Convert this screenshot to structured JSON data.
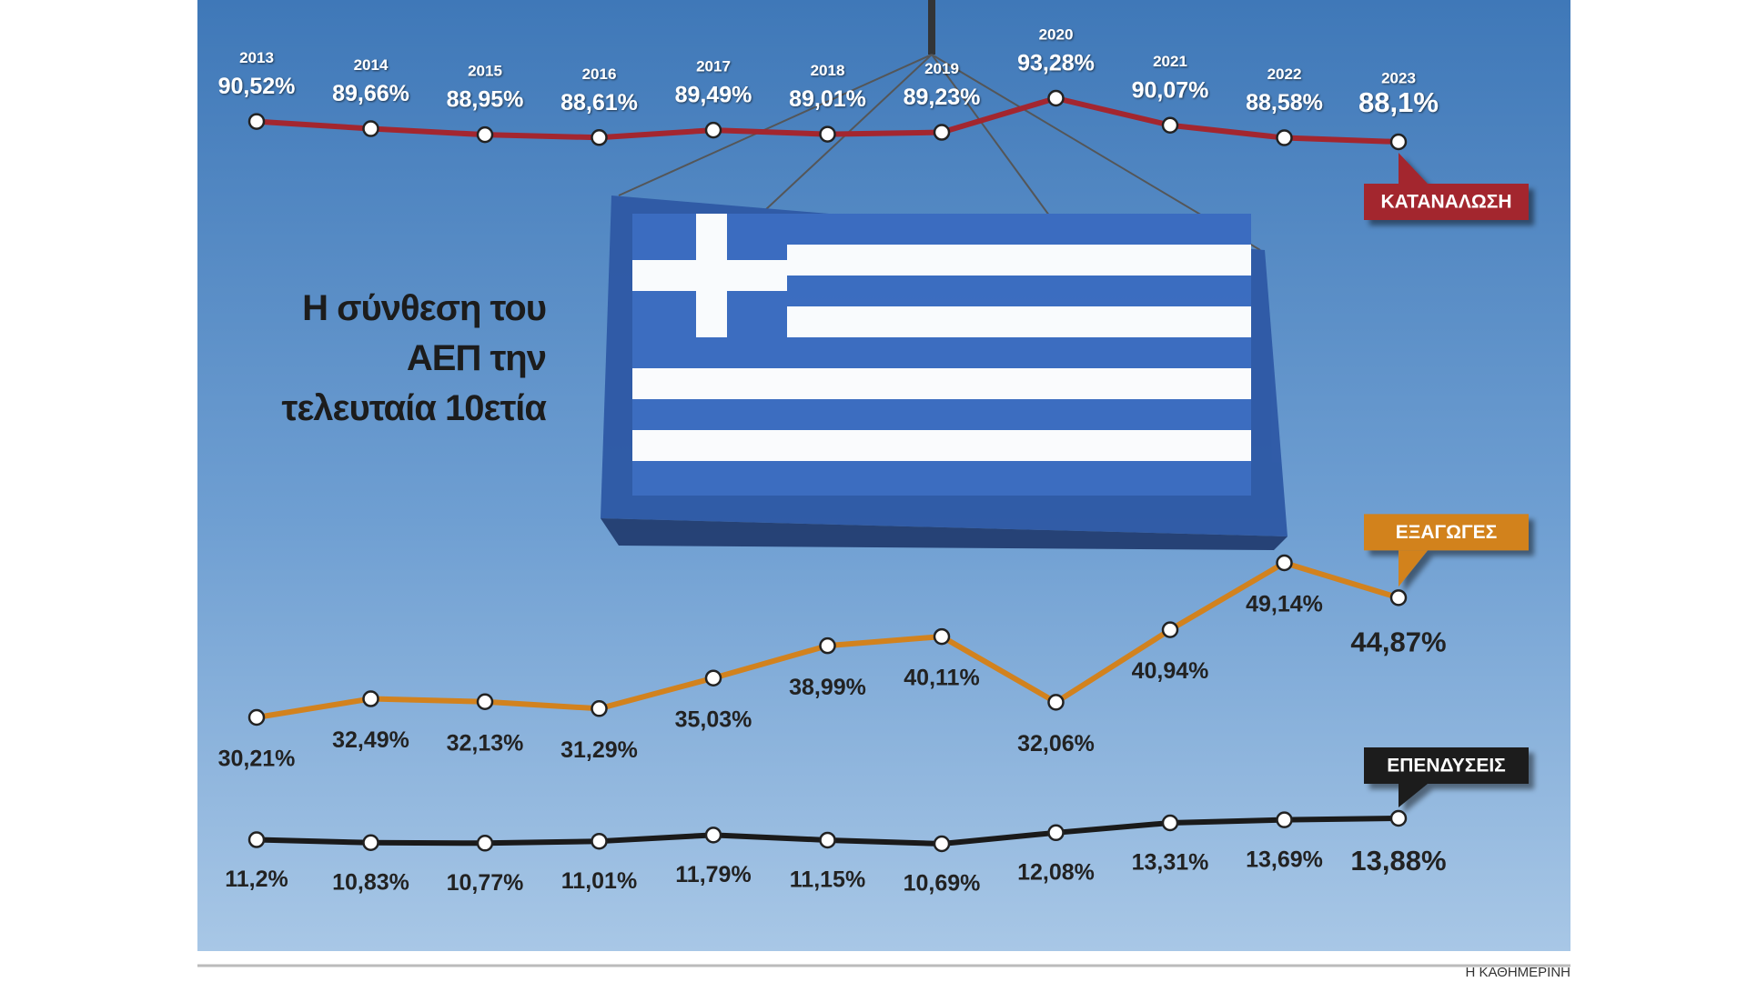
{
  "chart_data": {
    "type": "line",
    "title": "Η σύνθεση του ΑΕΠ την τελευταία 10ετία",
    "source": "Η ΚΑΘΗΜΕΡΙΝΗ",
    "categories": [
      "2013",
      "2014",
      "2015",
      "2016",
      "2017",
      "2018",
      "2019",
      "2020",
      "2021",
      "2022",
      "2023"
    ],
    "series": [
      {
        "name": "ΚΑΤΑΝΑΛΩΣΗ",
        "color": "#a3262f",
        "values": [
          90.52,
          89.66,
          88.95,
          88.61,
          89.49,
          89.01,
          89.23,
          93.28,
          90.07,
          88.58,
          88.1
        ],
        "value_labels": [
          "90,52%",
          "89,66%",
          "88,95%",
          "88,61%",
          "89,49%",
          "89,01%",
          "89,23%",
          "93,28%",
          "90,07%",
          "88,58%",
          "88,1%"
        ]
      },
      {
        "name": "ΕΞΑΓΩΓΕΣ",
        "color": "#d2821e",
        "values": [
          30.21,
          32.49,
          32.13,
          31.29,
          35.03,
          38.99,
          40.11,
          32.06,
          40.94,
          49.14,
          44.87
        ],
        "value_labels": [
          "30,21%",
          "32,49%",
          "32,13%",
          "31,29%",
          "35,03%",
          "38,99%",
          "40,11%",
          "32,06%",
          "40,94%",
          "49,14%",
          "44,87%"
        ]
      },
      {
        "name": "ΕΠΕΝΔΥΣΕΙΣ",
        "color": "#1a1a1a",
        "values": [
          11.2,
          10.83,
          10.77,
          11.01,
          11.79,
          11.15,
          10.69,
          12.08,
          13.31,
          13.69,
          13.88
        ],
        "value_labels": [
          "11,2%",
          "10,83%",
          "10,77%",
          "11,01%",
          "11,79%",
          "11,15%",
          "10,69%",
          "12,08%",
          "13,31%",
          "13,69%",
          "13,88%"
        ]
      }
    ]
  }
}
